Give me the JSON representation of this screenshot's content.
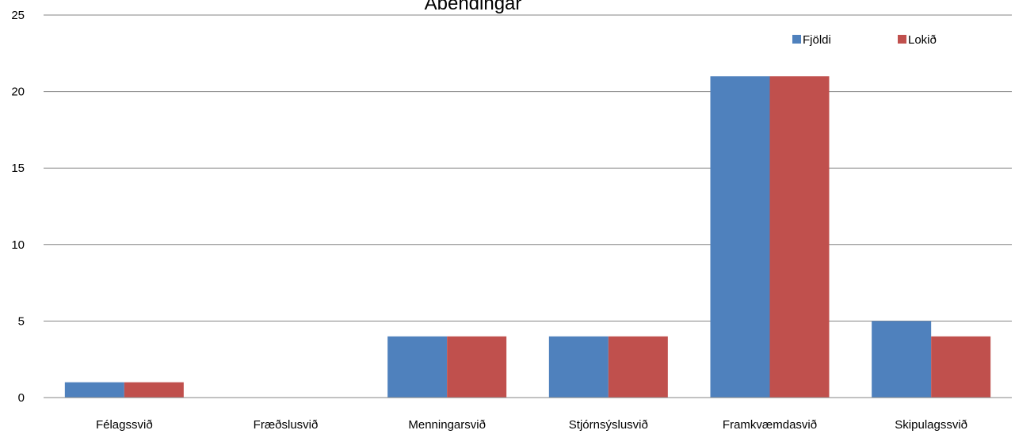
{
  "chart_data": {
    "type": "bar",
    "title": "Ábendingar",
    "categories": [
      "Félagssvið",
      "Fræðslusvið",
      "Menningarsvið",
      "Stjórnsýslusvið",
      "Framkvæmdasvið",
      "Skipulagssvið"
    ],
    "series": [
      {
        "name": "Fjöldi",
        "values": [
          1,
          0,
          4,
          4,
          21,
          5
        ],
        "color": "#4F81BD"
      },
      {
        "name": "Lokið",
        "values": [
          1,
          0,
          4,
          4,
          21,
          4
        ],
        "color": "#C0504D"
      }
    ],
    "ylim": [
      0,
      25
    ],
    "yticks": [
      "0",
      "5",
      "10",
      "15",
      "20",
      "25"
    ],
    "xlabel": "",
    "ylabel": "",
    "grid": true,
    "legend_position": "top-right"
  }
}
